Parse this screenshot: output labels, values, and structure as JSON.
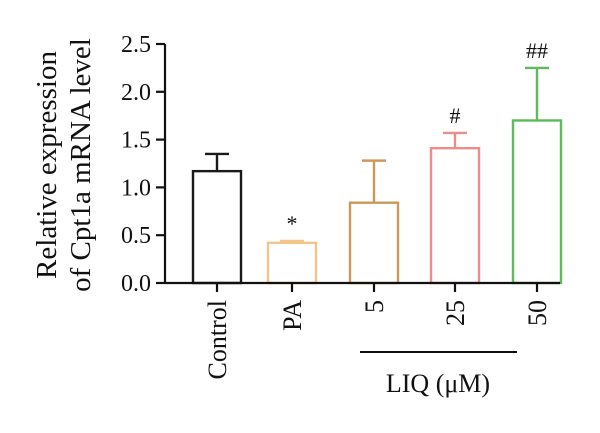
{
  "chart_data": {
    "type": "bar",
    "ylabel_lines": [
      "Relative expression",
      "of Cpt1a mRNA level"
    ],
    "ylim": [
      0,
      2.5
    ],
    "yticks": [
      "0.0",
      "0.5",
      "1.0",
      "1.5",
      "2.0",
      "2.5"
    ],
    "categories": [
      "Control",
      "PA",
      "5",
      "25",
      "50"
    ],
    "values": [
      1.17,
      0.42,
      0.84,
      1.41,
      1.7
    ],
    "errors": [
      0.18,
      0.02,
      0.44,
      0.16,
      0.55
    ],
    "annotations": [
      "",
      "*",
      "",
      "#",
      "##"
    ],
    "bar_colors": [
      "#1a1a1a",
      "#f3c58b",
      "#c99a5b",
      "#ec8c8c",
      "#5dbb5d"
    ],
    "group_label": "LIQ (μM)",
    "grid": false,
    "legend": "none"
  }
}
